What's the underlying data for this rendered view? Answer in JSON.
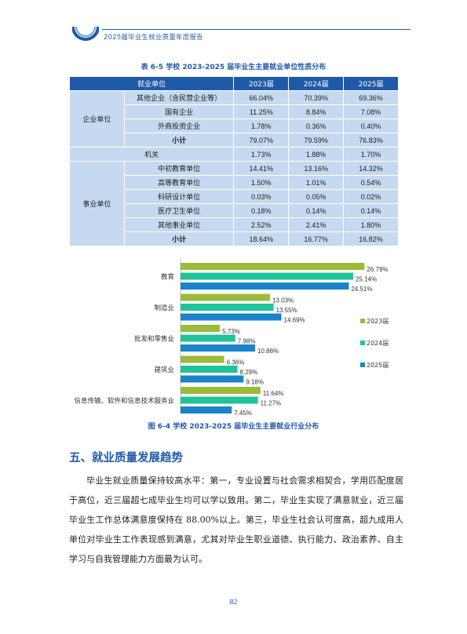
{
  "header": {
    "title": "2025届毕业生就业质量年度报告"
  },
  "table": {
    "caption": "表 6-5  学校 2023-2025 届毕业生主要就业单位性质分布",
    "headers": [
      "就业单位",
      "2023届",
      "2024届",
      "2025届"
    ],
    "groups": [
      {
        "category": "企业单位",
        "rows": [
          {
            "label": "其他企业（含民营企业等）",
            "v": [
              "66.04%",
              "70.39%",
              "69.36%"
            ]
          },
          {
            "label": "国有企业",
            "v": [
              "11.25%",
              "8.84%",
              "7.08%"
            ]
          },
          {
            "label": "外商投资企业",
            "v": [
              "1.78%",
              "0.36%",
              "0.40%"
            ]
          },
          {
            "label": "小计",
            "v": [
              "79.07%",
              "79.59%",
              "76.83%"
            ]
          }
        ]
      },
      {
        "category": "机关",
        "rows": [
          {
            "label": "",
            "v": [
              "1.73%",
              "1.88%",
              "1.70%"
            ]
          }
        ]
      },
      {
        "category": "事业单位",
        "rows": [
          {
            "label": "中初教育单位",
            "v": [
              "14.41%",
              "13.16%",
              "14.32%"
            ]
          },
          {
            "label": "高等教育单位",
            "v": [
              "1.50%",
              "1.01%",
              "0.54%"
            ]
          },
          {
            "label": "科研设计单位",
            "v": [
              "0.03%",
              "0.05%",
              "0.02%"
            ]
          },
          {
            "label": "医疗卫生单位",
            "v": [
              "0.18%",
              "0.14%",
              "0.14%"
            ]
          },
          {
            "label": "其他事业单位",
            "v": [
              "2.52%",
              "2.41%",
              "1.80%"
            ]
          },
          {
            "label": "小计",
            "v": [
              "18.64%",
              "16.77%",
              "16.82%"
            ]
          }
        ]
      }
    ]
  },
  "chart_data": {
    "type": "bar",
    "orientation": "horizontal",
    "categories": [
      "教育",
      "制造业",
      "批发和零售业",
      "建筑业",
      "信息传输、软件和信息技术服务业"
    ],
    "series": [
      {
        "name": "2023届",
        "color": "#9bbb3b",
        "values": [
          26.79,
          13.03,
          5.73,
          6.36,
          11.64
        ],
        "labels": [
          "26.79%",
          "13.03%",
          "5.73%",
          "6.36%",
          "11.64%"
        ]
      },
      {
        "name": "2024届",
        "color": "#1fc39a",
        "values": [
          25.14,
          13.55,
          7.98,
          8.29,
          11.27
        ],
        "labels": [
          "25.14%",
          "13.55%",
          "7.98%",
          "8.29%",
          "11.27%"
        ]
      },
      {
        "name": "2025届",
        "color": "#1a83c9",
        "values": [
          24.51,
          14.69,
          10.86,
          9.18,
          7.45
        ],
        "labels": [
          "24.51%",
          "14.69%",
          "10.86%",
          "9.18%",
          "7.45%"
        ]
      }
    ],
    "legend_position": "right",
    "grid": false
  },
  "chart_caption": "图 6-4  学校 2023-2025 届毕业生主要就业行业分布",
  "section": {
    "title": "五、就业质量发展趋势",
    "paragraph": "毕业生就业质量保持较高水平：第一，专业设置与社会需求相契合，学用匹配度居于高位，近三届超七成毕业生均可以学以致用。第二，毕业生实现了满意就业，近三届毕业生工作总体满意度保持在 88.00%以上。第三，毕业生社会认可度高，超九成用人单位对毕业生工作表现感到满意，尤其对毕业生职业道德、执行能力、政治素养、自主学习与自我管理能力方面最为认可。"
  },
  "page_number": "82"
}
